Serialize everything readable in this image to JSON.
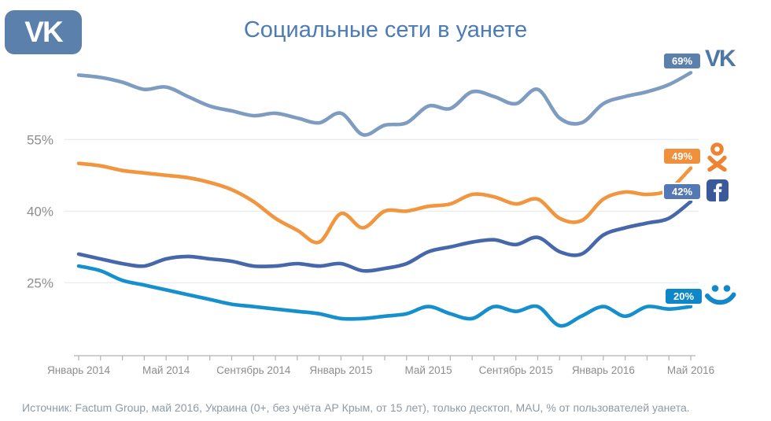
{
  "logo": {
    "text": "VK"
  },
  "title": "Социальные сети в уанете",
  "source": "Источник: Factum Group, май 2016, Украина (0+, без учёта АР Крым, от 15 лет), только десктоп, MAU, % от пользователей уанета.",
  "colors": {
    "title": "#4b7cb8",
    "logo_background": "#5b80ab",
    "gridline": "#e9eef3",
    "axis": "#b0b2b4",
    "axis_text": "#8d8d8d",
    "source_text": "#909aa4"
  },
  "chart_data": {
    "type": "line",
    "title": "Социальные сети в уанете",
    "x_tick_labels": [
      "Январь 2014",
      "Май 2014",
      "Сентябрь 2014",
      "Январь 2015",
      "Май 2015",
      "Сентябрь 2015",
      "Январь 2016",
      "Май 2016"
    ],
    "x_label_every_n_months": 4,
    "n_monthly_points": 29,
    "y_ticks": [
      {
        "value": 25,
        "label": "25%"
      },
      {
        "value": 40,
        "label": "40%"
      },
      {
        "value": 55,
        "label": "55%"
      }
    ],
    "ylim": [
      10,
      71
    ],
    "grid": "horizontal-light",
    "unit": "% пользователей уанета (MAU, десктоп)",
    "series": [
      {
        "network": "vk",
        "icon": "vk-logo-icon",
        "end_label": "69%",
        "line_color": "#7e9cc1",
        "badge_color": "#5b80ac",
        "icon_color": "#4d77a7",
        "values": [
          68.5,
          68,
          67,
          65.5,
          66,
          64,
          62,
          61,
          60,
          60.5,
          59.5,
          58.5,
          60.5,
          56,
          58,
          58.5,
          62,
          61.5,
          65,
          64,
          62.5,
          65.5,
          59.5,
          58.5,
          62.5,
          64,
          65,
          66.5,
          69
        ]
      },
      {
        "network": "odnoklassniki",
        "icon": "odnoklassniki-icon",
        "end_label": "49%",
        "line_color": "#f2953f",
        "badge_color": "#f0903c",
        "icon_color": "#ee8432",
        "values": [
          50,
          49.5,
          48.5,
          48,
          47.5,
          47,
          46,
          44.5,
          42,
          38.5,
          36,
          33.5,
          39.5,
          36.5,
          40,
          40,
          41,
          41.5,
          43.5,
          43,
          41.5,
          42.5,
          38.5,
          38,
          42.5,
          44,
          43.5,
          44.5,
          49
        ]
      },
      {
        "network": "facebook",
        "icon": "facebook-icon",
        "end_label": "42%",
        "line_color": "#4767ab",
        "badge_color": "#5478b3",
        "icon_color": "#3b5998",
        "values": [
          31,
          30,
          29,
          28.5,
          30,
          30.5,
          30,
          29.5,
          28.5,
          28.5,
          29,
          28.5,
          29,
          27.5,
          28,
          29,
          31.5,
          32.5,
          33.5,
          34,
          33,
          34.5,
          31.5,
          31,
          35,
          36.5,
          37.5,
          38.5,
          42
        ]
      },
      {
        "network": "moi-mir",
        "icon": "smiley-icon",
        "end_label": "20%",
        "line_color": "#1690cd",
        "badge_color": "#0e87c8",
        "icon_color": "#1287c9",
        "values": [
          28.5,
          27.5,
          25.5,
          24.5,
          23.5,
          22.5,
          21.5,
          20.5,
          20,
          19.5,
          19,
          18.5,
          17.5,
          17.5,
          18,
          18.5,
          20,
          18.5,
          17.5,
          20,
          19,
          20,
          16,
          18,
          20,
          18,
          20,
          19.5,
          20
        ]
      }
    ]
  }
}
